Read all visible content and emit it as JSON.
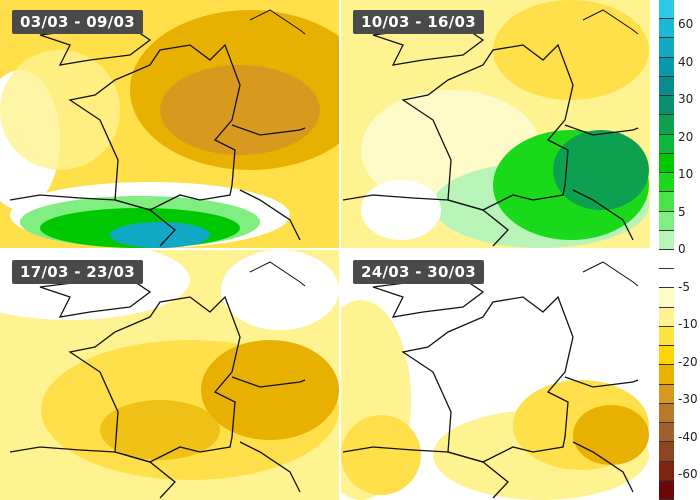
{
  "panels": [
    {
      "label": "03/03 - 09/03"
    },
    {
      "label": "10/03 - 16/03"
    },
    {
      "label": "17/03 - 23/03"
    },
    {
      "label": "24/03 - 30/03"
    }
  ],
  "legend": {
    "unit_labels": [
      "60",
      "40",
      "30",
      "20",
      "10",
      "5",
      "0",
      "-5",
      "-10",
      "-20",
      "-30",
      "-40",
      "-60"
    ],
    "colors": [
      "#2ec8e8",
      "#19bad8",
      "#10a8c4",
      "#0b98ac",
      "#0a8c8e",
      "#0a9070",
      "#0ca050",
      "#0cb838",
      "#00c800",
      "#1ad81a",
      "#48e448",
      "#80ee80",
      "#b8f4b8",
      "#ffffff",
      "#ffffff",
      "#fffbc8",
      "#fff290",
      "#ffe440",
      "#ffd400",
      "#eab300",
      "#d8991e",
      "#b87a28",
      "#a06030",
      "#8e4420",
      "#7e2410",
      "#6e0808"
    ]
  }
}
